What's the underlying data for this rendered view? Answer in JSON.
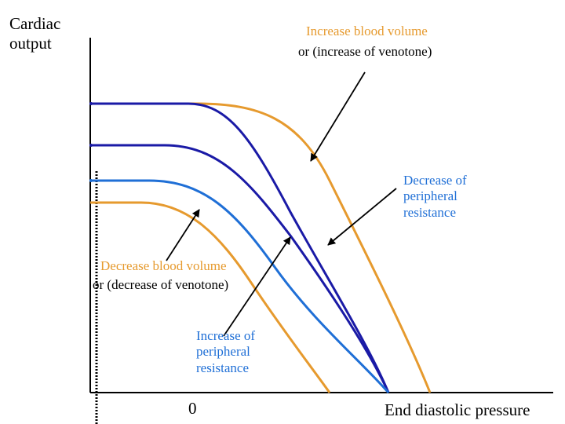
{
  "axes": {
    "y_label_line1": "Cardiac",
    "y_label_line2": "output",
    "x_label": "End diastolic pressure",
    "origin_label": "0"
  },
  "annotations": {
    "increase_volume_line1": "Increase blood volume",
    "increase_volume_line2": "or  (increase of venotone)",
    "decrease_resistance": [
      "Decrease of",
      "peripheral",
      "resistance"
    ],
    "decrease_volume_line1": "Decrease blood volume",
    "decrease_volume_line2": "or  (decrease of venotone)",
    "increase_resistance": [
      "Increase of",
      "peripheral",
      "resistance"
    ]
  },
  "colors": {
    "orange": "#e69a2e",
    "navy": "#1a1aa6",
    "blue": "#1f6fd6",
    "axis": "#000000"
  }
}
